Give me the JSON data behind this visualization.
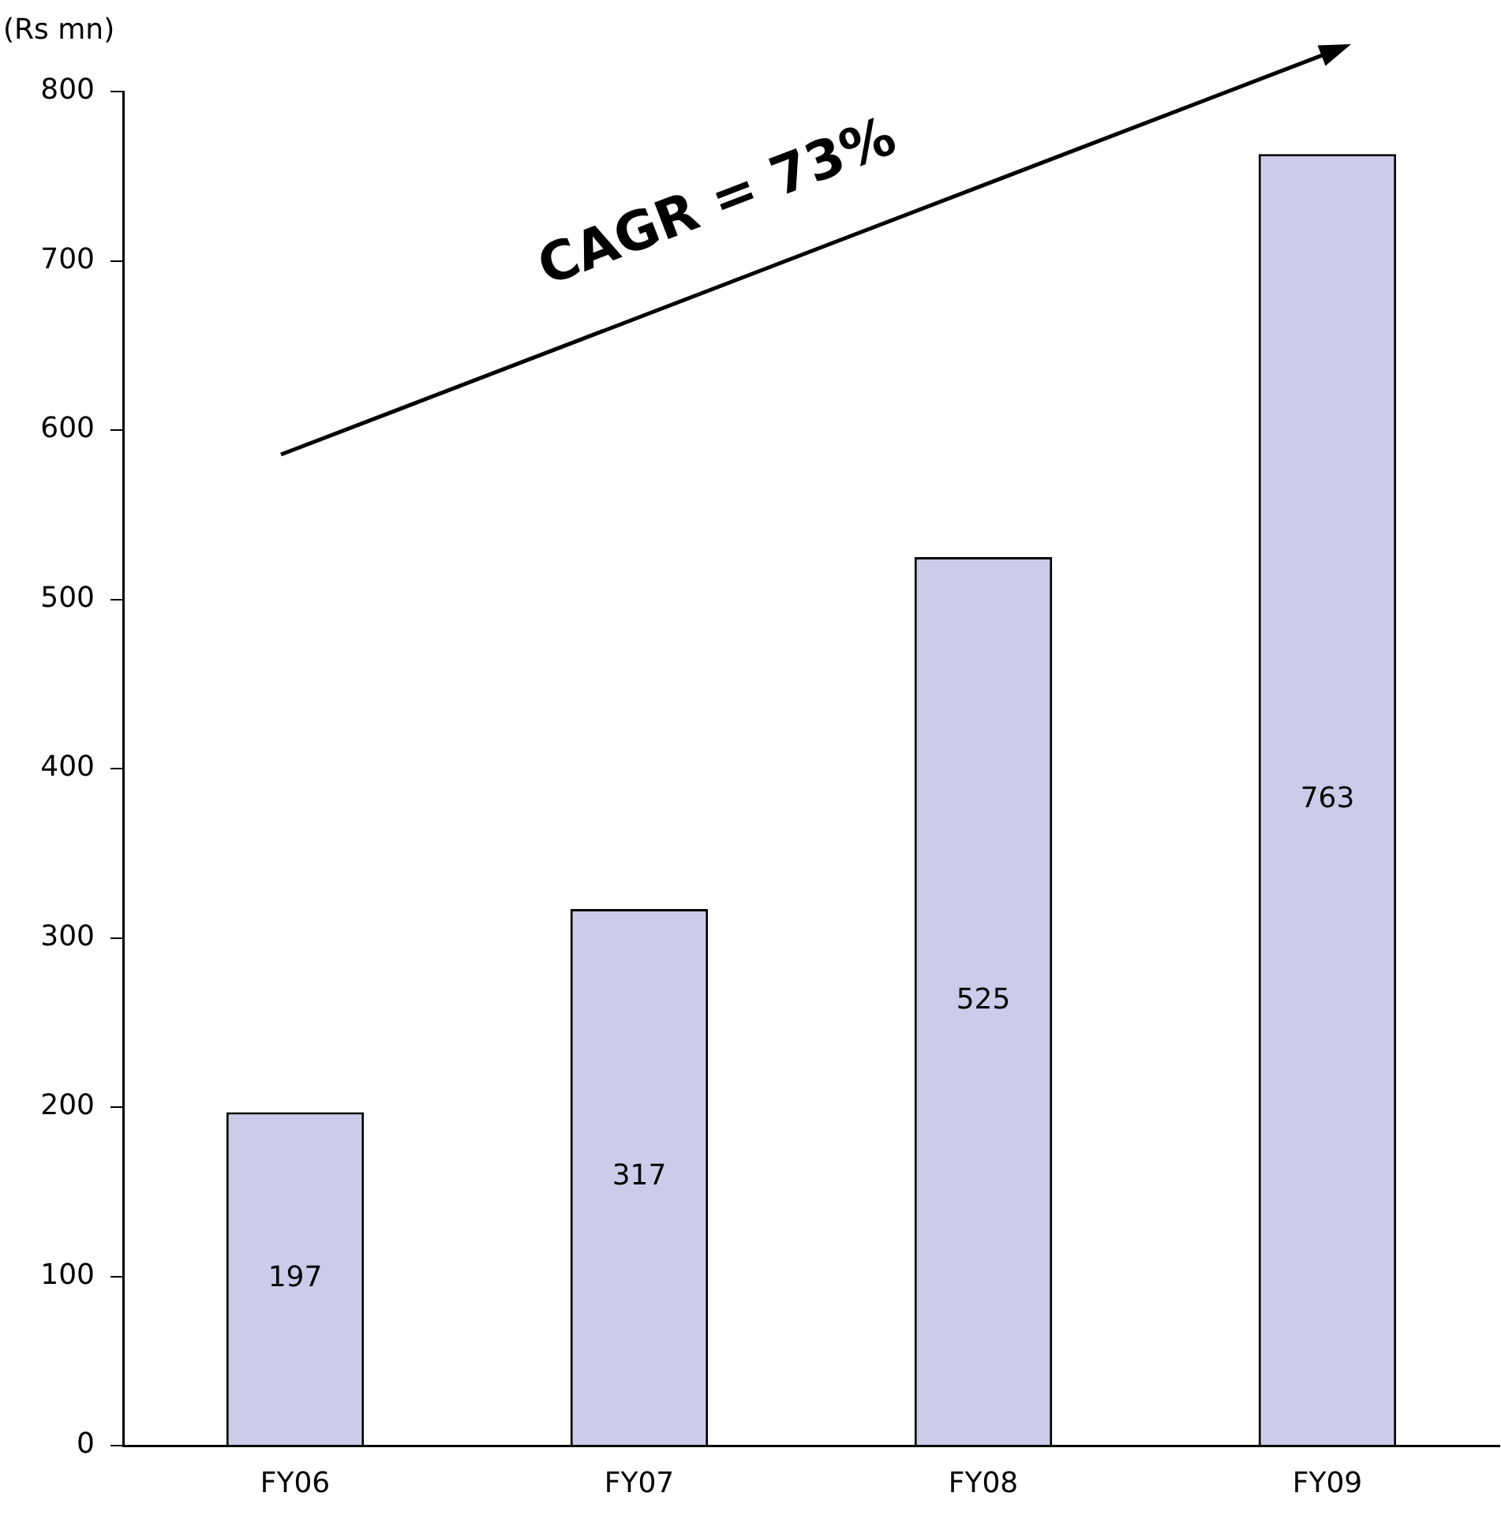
{
  "chart_data": {
    "type": "bar",
    "ylabel": "(Rs mn)",
    "categories": [
      "FY06",
      "FY07",
      "FY08",
      "FY09"
    ],
    "values": [
      197,
      317,
      525,
      763
    ],
    "color": "#ccccea",
    "ylim": [
      0,
      800
    ],
    "yticks": [
      0,
      100,
      200,
      300,
      400,
      500,
      600,
      700,
      800
    ],
    "grid": false,
    "legend": false,
    "data_labels": true,
    "annotations": [
      "CAGR = 73%"
    ]
  }
}
